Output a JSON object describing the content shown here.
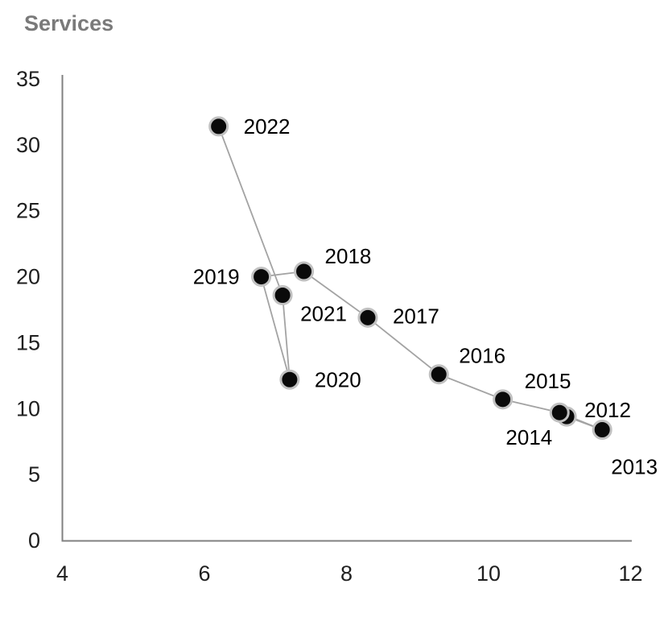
{
  "chart_data": {
    "type": "scatter",
    "connected": true,
    "title": "Services",
    "xlabel": "",
    "ylabel": "Services",
    "xlim": [
      4,
      12
    ],
    "ylim": [
      0,
      35
    ],
    "x_ticks": [
      "4",
      "6",
      "8",
      "10",
      "12"
    ],
    "x_tick_values": [
      4,
      6,
      8,
      10,
      12
    ],
    "y_ticks": [
      "0",
      "5",
      "10",
      "15",
      "20",
      "25",
      "30",
      "35"
    ],
    "y_tick_values": [
      0,
      5,
      10,
      15,
      20,
      25,
      30,
      35
    ],
    "grid": false,
    "legend": false,
    "series": [
      {
        "name": "Services",
        "points": [
          {
            "label": "2012",
            "x": 11.1,
            "y": 9.4,
            "label_anchor": "start",
            "label_dx": 22,
            "label_dy": -8
          },
          {
            "label": "2013",
            "x": 11.6,
            "y": 8.4,
            "label_anchor": "start",
            "label_dx": 11,
            "label_dy": 46
          },
          {
            "label": "2014",
            "x": 11.0,
            "y": 9.7,
            "label_anchor": "end",
            "label_dx": -9,
            "label_dy": 31
          },
          {
            "label": "2015",
            "x": 10.2,
            "y": 10.7,
            "label_anchor": "start",
            "label_dx": 27,
            "label_dy": -23
          },
          {
            "label": "2016",
            "x": 9.3,
            "y": 12.6,
            "label_anchor": "start",
            "label_dx": 25,
            "label_dy": -23
          },
          {
            "label": "2017",
            "x": 8.3,
            "y": 16.9,
            "label_anchor": "start",
            "label_dx": 31,
            "label_dy": -2
          },
          {
            "label": "2018",
            "x": 7.4,
            "y": 20.4,
            "label_anchor": "start",
            "label_dx": 26,
            "label_dy": -19
          },
          {
            "label": "2019",
            "x": 6.8,
            "y": 20.0,
            "label_anchor": "end",
            "label_dx": -27,
            "label_dy": 0
          },
          {
            "label": "2020",
            "x": 7.2,
            "y": 12.2,
            "label_anchor": "start",
            "label_dx": 31,
            "label_dy": 0
          },
          {
            "label": "2021",
            "x": 7.1,
            "y": 18.6,
            "label_anchor": "start",
            "label_dx": 22,
            "label_dy": 23
          },
          {
            "label": "2022",
            "x": 6.2,
            "y": 31.4,
            "label_anchor": "start",
            "label_dx": 31,
            "label_dy": 0
          }
        ]
      }
    ],
    "colors": {
      "background": "#ffffff",
      "title": "#7a7a7a",
      "axis": "#808080",
      "tick_text": "#1f1f1f",
      "label_text": "#000000",
      "line": "#a3a3a3",
      "marker_fill": "#0a0a0a",
      "marker_ring": "#c1c1c1"
    }
  }
}
